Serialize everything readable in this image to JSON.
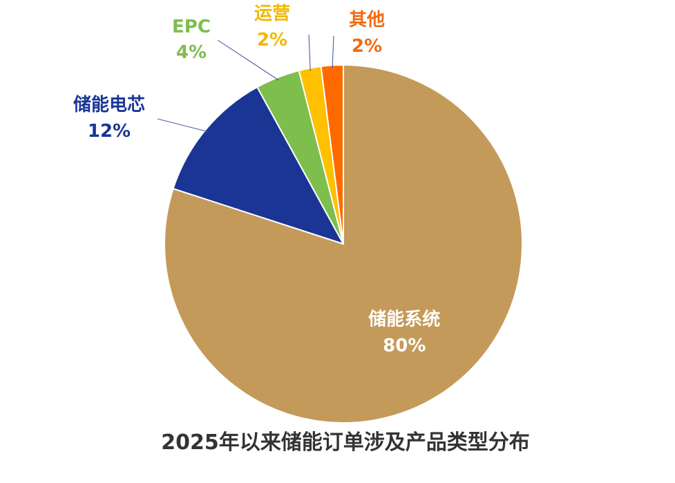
{
  "chart_data": {
    "type": "pie",
    "title": "2025年以来储能订单涉及产品类型分布",
    "start_angle_deg": 0,
    "direction": "clockwise",
    "legend": "none",
    "slices": [
      {
        "label": "储能系统",
        "value": 80,
        "value_text": "80%",
        "color": "#C49A5A",
        "label_color": "#FFFFFF",
        "label_placement": "inside"
      },
      {
        "label": "储能电芯",
        "value": 12,
        "value_text": "12%",
        "color": "#1A3594",
        "label_color": "#1A3594",
        "label_placement": "outside-left"
      },
      {
        "label": "EPC",
        "value": 4,
        "value_text": "4%",
        "color": "#7DBE4C",
        "label_color": "#7DBE4C",
        "label_placement": "outside-top"
      },
      {
        "label": "运营",
        "value": 2,
        "value_text": "2%",
        "color": "#FFC000",
        "label_color": "#F2B800",
        "label_placement": "outside-top"
      },
      {
        "label": "其他",
        "value": 2,
        "value_text": "2%",
        "color": "#FF6A00",
        "label_color": "#F26A10",
        "label_placement": "outside-top"
      }
    ]
  }
}
